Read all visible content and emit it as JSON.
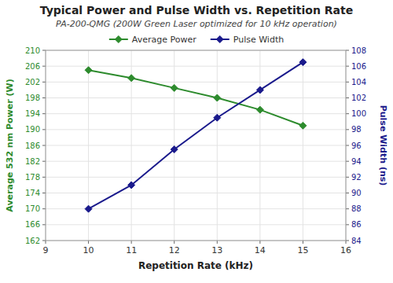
{
  "chart_data": {
    "type": "line",
    "title": "Typical Power and Pulse Width vs. Repetition Rate",
    "subtitle": "PA-200-QMG (200W Green Laser optimized for 10 kHz operation)",
    "x_label": "Repetition Rate (kHz)",
    "y_label": "Average 532 nm Power (W)",
    "y2_label": "Pulse Width (ns)",
    "x": [
      10,
      11,
      12,
      13,
      14,
      15
    ],
    "series": [
      {
        "name": "Average Power",
        "color": "#2d8b2d",
        "marker": "diamond",
        "values": [
          205.0,
          203.0,
          200.5,
          198.0,
          195.0,
          191.0
        ]
      },
      {
        "name": "Pulse Width",
        "color": "#1a1a8c",
        "marker": "diamond",
        "axis": "y2",
        "values": [
          88.0,
          91.0,
          95.5,
          99.5,
          103.0,
          106.5
        ]
      }
    ],
    "xlim": [
      9,
      16
    ],
    "xticks": [
      9,
      10,
      11,
      12,
      13,
      14,
      15,
      16
    ],
    "ylim": [
      162,
      210
    ],
    "yticks": [
      162,
      166,
      170,
      174,
      178,
      182,
      186,
      190,
      194,
      198,
      202,
      206,
      210
    ],
    "y2lim": [
      84,
      108
    ],
    "y2ticks": [
      84,
      86,
      88,
      90,
      92,
      94,
      96,
      98,
      100,
      102,
      104,
      106,
      108
    ],
    "grid": true,
    "legend": "top"
  }
}
